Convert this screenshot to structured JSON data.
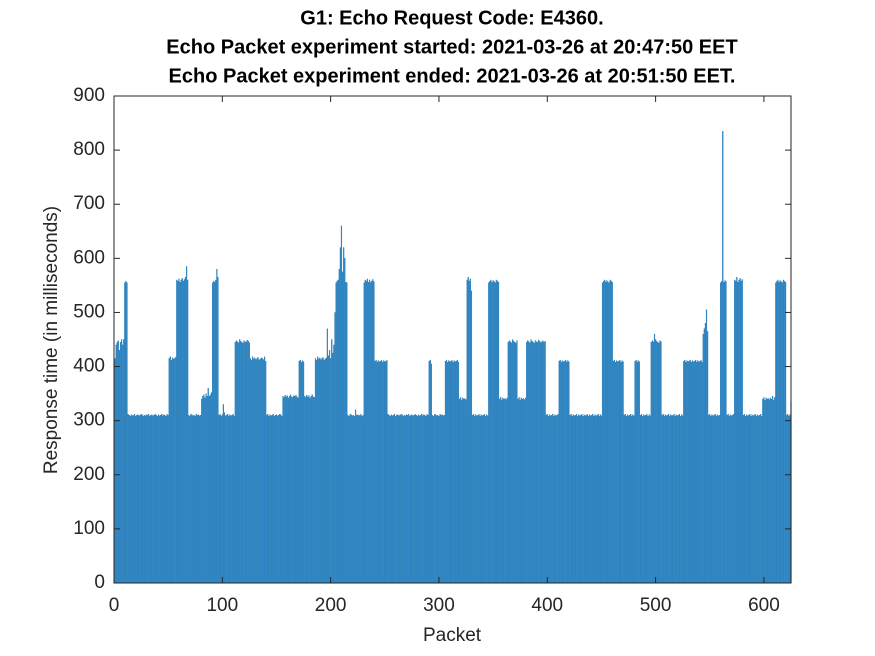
{
  "chart_data": {
    "type": "bar",
    "title": [
      "G1: Echo Request Code: E4360.",
      "Echo Packet experiment started: 2021-03-26 at 20:47:50 EET",
      "Echo Packet experiment ended: 2021-03-26 at 20:51:50 EET."
    ],
    "x_label": "Packet",
    "y_label": "Response time (in milliseconds)",
    "color": "#2b8ccf",
    "xlim": [
      0,
      625
    ],
    "xticks": [
      0,
      100,
      200,
      300,
      400,
      500,
      600
    ],
    "ylim": [
      0,
      900
    ],
    "yticks": [
      0,
      100,
      200,
      300,
      400,
      500,
      600,
      700,
      800,
      900
    ],
    "x": [
      1,
      2,
      3,
      4,
      5,
      6,
      7,
      8,
      9,
      10,
      11,
      12,
      13,
      14,
      15,
      16,
      17,
      18,
      19,
      20,
      21,
      22,
      23,
      24,
      25,
      26,
      27,
      28,
      29,
      30,
      31,
      32,
      33,
      34,
      35,
      36,
      37,
      38,
      39,
      40,
      41,
      42,
      43,
      44,
      45,
      46,
      47,
      48,
      49,
      50,
      51,
      52,
      53,
      54,
      55,
      56,
      57,
      58,
      59,
      60,
      61,
      62,
      63,
      64,
      65,
      66,
      67,
      68,
      69,
      70,
      71,
      72,
      73,
      74,
      75,
      76,
      77,
      78,
      79,
      80,
      81,
      82,
      83,
      84,
      85,
      86,
      87,
      88,
      89,
      90,
      91,
      92,
      93,
      94,
      95,
      96,
      97,
      98,
      99,
      100,
      101,
      102,
      103,
      104,
      105,
      106,
      107,
      108,
      109,
      110,
      111,
      112,
      113,
      114,
      115,
      116,
      117,
      118,
      119,
      120,
      121,
      122,
      123,
      124,
      125,
      126,
      127,
      128,
      129,
      130,
      131,
      132,
      133,
      134,
      135,
      136,
      137,
      138,
      139,
      140,
      141,
      142,
      143,
      144,
      145,
      146,
      147,
      148,
      149,
      150,
      151,
      152,
      153,
      154,
      155,
      156,
      157,
      158,
      159,
      160,
      161,
      162,
      163,
      164,
      165,
      166,
      167,
      168,
      169,
      170,
      171,
      172,
      173,
      174,
      175,
      176,
      177,
      178,
      179,
      180,
      181,
      182,
      183,
      184,
      185,
      186,
      187,
      188,
      189,
      190,
      191,
      192,
      193,
      194,
      195,
      196,
      197,
      198,
      199,
      200,
      201,
      202,
      203,
      204,
      205,
      206,
      207,
      208,
      209,
      210,
      211,
      212,
      213,
      214,
      215,
      216,
      217,
      218,
      219,
      220,
      221,
      222,
      223,
      224,
      225,
      226,
      227,
      228,
      229,
      230,
      231,
      232,
      233,
      234,
      235,
      236,
      237,
      238,
      239,
      240,
      241,
      242,
      243,
      244,
      245,
      246,
      247,
      248,
      249,
      250,
      251,
      252,
      253,
      254,
      255,
      256,
      257,
      258,
      259,
      260,
      261,
      262,
      263,
      264,
      265,
      266,
      267,
      268,
      269,
      270,
      271,
      272,
      273,
      274,
      275,
      276,
      277,
      278,
      279,
      280,
      281,
      282,
      283,
      284,
      285,
      286,
      287,
      288,
      289,
      290,
      291,
      292,
      293,
      294,
      295,
      296,
      297,
      298,
      299,
      300,
      301,
      302,
      303,
      304,
      305,
      306,
      307,
      308,
      309,
      310,
      311,
      312,
      313,
      314,
      315,
      316,
      317,
      318,
      319,
      320,
      321,
      322,
      323,
      324,
      325,
      326,
      327,
      328,
      329,
      330,
      331,
      332,
      333,
      334,
      335,
      336,
      337,
      338,
      339,
      340,
      341,
      342,
      343,
      344,
      345,
      346,
      347,
      348,
      349,
      350,
      351,
      352,
      353,
      354,
      355,
      356,
      357,
      358,
      359,
      360,
      361,
      362,
      363,
      364,
      365,
      366,
      367,
      368,
      369,
      370,
      371,
      372,
      373,
      374,
      375,
      376,
      377,
      378,
      379,
      380,
      381,
      382,
      383,
      384,
      385,
      386,
      387,
      388,
      389,
      390,
      391,
      392,
      393,
      394,
      395,
      396,
      397,
      398,
      399,
      400,
      401,
      402,
      403,
      404,
      405,
      406,
      407,
      408,
      409,
      410,
      411,
      412,
      413,
      414,
      415,
      416,
      417,
      418,
      419,
      420,
      421,
      422,
      423,
      424,
      425,
      426,
      427,
      428,
      429,
      430,
      431,
      432,
      433,
      434,
      435,
      436,
      437,
      438,
      439,
      440,
      441,
      442,
      443,
      444,
      445,
      446,
      447,
      448,
      449,
      450,
      451,
      452,
      453,
      454,
      455,
      456,
      457,
      458,
      459,
      460,
      461,
      462,
      463,
      464,
      465,
      466,
      467,
      468,
      469,
      470,
      471,
      472,
      473,
      474,
      475,
      476,
      477,
      478,
      479,
      480,
      481,
      482,
      483,
      484,
      485,
      486,
      487,
      488,
      489,
      490,
      491,
      492,
      493,
      494,
      495,
      496,
      497,
      498,
      499,
      500,
      501,
      502,
      503,
      504,
      505,
      506,
      507,
      508,
      509,
      510,
      511,
      512,
      513,
      514,
      515,
      516,
      517,
      518,
      519,
      520,
      521,
      522,
      523,
      524,
      525,
      526,
      527,
      528,
      529,
      530,
      531,
      532,
      533,
      534,
      535,
      536,
      537,
      538,
      539,
      540,
      541,
      542,
      543,
      544,
      545,
      546,
      547,
      548,
      549,
      550,
      551,
      552,
      553,
      554,
      555,
      556,
      557,
      558,
      559,
      560,
      561,
      562,
      563,
      564,
      565,
      566,
      567,
      568,
      569,
      570,
      571,
      572,
      573,
      574,
      575,
      576,
      577,
      578,
      579,
      580,
      581,
      582,
      583,
      584,
      585,
      586,
      587,
      588,
      589,
      590,
      591,
      592,
      593,
      594,
      595,
      596,
      597,
      598,
      599,
      600,
      601,
      602,
      603,
      604,
      605,
      606,
      607,
      608,
      609,
      610,
      611,
      612,
      613,
      614,
      615,
      616,
      617,
      618,
      619,
      620,
      621,
      622,
      623,
      624,
      625
    ],
    "values": [
      415,
      440,
      445,
      448,
      430,
      445,
      450,
      440,
      450,
      555,
      558,
      555,
      312,
      310,
      308,
      311,
      309,
      310,
      312,
      308,
      310,
      311,
      309,
      310,
      312,
      311,
      308,
      310,
      309,
      311,
      310,
      312,
      308,
      310,
      311,
      309,
      310,
      312,
      310,
      308,
      311,
      309,
      310,
      312,
      309,
      311,
      310,
      308,
      312,
      310,
      415,
      418,
      412,
      416,
      414,
      415,
      417,
      560,
      558,
      562,
      556,
      560,
      563,
      558,
      561,
      565,
      585,
      560,
      310,
      308,
      312,
      311,
      309,
      310,
      308,
      312,
      310,
      311,
      309,
      310,
      340,
      345,
      348,
      342,
      350,
      345,
      360,
      345,
      348,
      352,
      555,
      558,
      556,
      560,
      580,
      565,
      310,
      312,
      308,
      311,
      330,
      315,
      309,
      310,
      312,
      308,
      311,
      309,
      310,
      312,
      308,
      445,
      448,
      446,
      444,
      450,
      447,
      445,
      443,
      448,
      446,
      445,
      449,
      447,
      444,
      415,
      412,
      418,
      414,
      416,
      413,
      415,
      417,
      412,
      414,
      416,
      415,
      413,
      418,
      410,
      310,
      312,
      308,
      311,
      309,
      310,
      312,
      308,
      310,
      311,
      309,
      310,
      312,
      311,
      308,
      345,
      343,
      347,
      344,
      346,
      342,
      345,
      348,
      344,
      343,
      346,
      345,
      347,
      344,
      342,
      410,
      412,
      408,
      411,
      409,
      345,
      343,
      347,
      344,
      346,
      342,
      345,
      348,
      344,
      343,
      415,
      412,
      418,
      414,
      416,
      413,
      415,
      417,
      412,
      414,
      416,
      470,
      420,
      430,
      415,
      450,
      425,
      440,
      500,
      555,
      558,
      560,
      580,
      620,
      660,
      575,
      620,
      600,
      556,
      555,
      310,
      308,
      312,
      311,
      309,
      310,
      308,
      320,
      310,
      311,
      309,
      310,
      312,
      308,
      310,
      555,
      560,
      558,
      562,
      556,
      560,
      555,
      558,
      561,
      557,
      410,
      412,
      408,
      411,
      409,
      410,
      412,
      408,
      411,
      409,
      410,
      412,
      312,
      310,
      308,
      311,
      309,
      310,
      312,
      308,
      310,
      311,
      309,
      310,
      312,
      311,
      308,
      310,
      309,
      311,
      310,
      312,
      308,
      310,
      311,
      309,
      310,
      312,
      310,
      308,
      311,
      309,
      310,
      312,
      309,
      311,
      310,
      308,
      312,
      310,
      410,
      412,
      405,
      310,
      308,
      312,
      311,
      309,
      310,
      308,
      312,
      310,
      311,
      309,
      310,
      410,
      412,
      408,
      411,
      409,
      410,
      412,
      408,
      411,
      409,
      410,
      412,
      408,
      340,
      343,
      338,
      342,
      340,
      341,
      339,
      560,
      565,
      558,
      562,
      540,
      310,
      312,
      308,
      311,
      309,
      310,
      312,
      308,
      311,
      309,
      310,
      312,
      308,
      311,
      309,
      555,
      558,
      560,
      556,
      559,
      557,
      555,
      560,
      558,
      556,
      340,
      343,
      338,
      342,
      340,
      341,
      339,
      342,
      445,
      448,
      446,
      444,
      450,
      447,
      445,
      443,
      448,
      340,
      343,
      338,
      342,
      340,
      341,
      339,
      342,
      445,
      448,
      446,
      444,
      450,
      447,
      445,
      443,
      448,
      446,
      445,
      449,
      447,
      444,
      446,
      448,
      445,
      447,
      310,
      312,
      308,
      311,
      309,
      310,
      312,
      308,
      311,
      309,
      310,
      312,
      410,
      412,
      408,
      411,
      409,
      410,
      412,
      408,
      411,
      409,
      310,
      312,
      308,
      311,
      309,
      310,
      312,
      308,
      311,
      309,
      310,
      312,
      308,
      311,
      309,
      310,
      312,
      308,
      311,
      309,
      310,
      312,
      308,
      311,
      309,
      310,
      312,
      308,
      311,
      309,
      555,
      558,
      560,
      556,
      559,
      557,
      555,
      560,
      558,
      556,
      410,
      412,
      408,
      411,
      409,
      410,
      412,
      408,
      411,
      409,
      310,
      312,
      308,
      311,
      309,
      310,
      312,
      308,
      311,
      309,
      410,
      412,
      408,
      411,
      409,
      310,
      312,
      308,
      311,
      309,
      310,
      312,
      308,
      311,
      309,
      445,
      448,
      446,
      460,
      450,
      447,
      445,
      443,
      448,
      446,
      310,
      312,
      308,
      311,
      309,
      310,
      312,
      308,
      311,
      309,
      310,
      312,
      308,
      311,
      309,
      310,
      312,
      308,
      311,
      309,
      410,
      412,
      408,
      411,
      409,
      410,
      412,
      408,
      411,
      409,
      410,
      412,
      408,
      411,
      409,
      410,
      412,
      408,
      460,
      470,
      480,
      505,
      465,
      310,
      312,
      308,
      311,
      309,
      310,
      312,
      308,
      311,
      309,
      310,
      555,
      558,
      835,
      556,
      559,
      557,
      310,
      312,
      308,
      311,
      309,
      310,
      312,
      560,
      558,
      565,
      556,
      560,
      563,
      558,
      561,
      310,
      312,
      308,
      311,
      309,
      310,
      312,
      308,
      311,
      309,
      310,
      312,
      308,
      311,
      309,
      310,
      312,
      308,
      340,
      343,
      338,
      342,
      340,
      341,
      339,
      342,
      340,
      345,
      338,
      343,
      555,
      558,
      560,
      556,
      559,
      557,
      555,
      560,
      558,
      556,
      310,
      312,
      308,
      311,
      335
    ]
  }
}
